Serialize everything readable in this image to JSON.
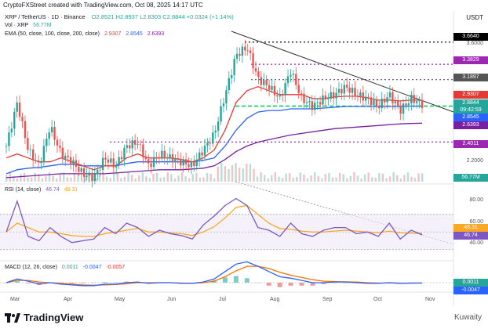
{
  "header": {
    "text": "CryptoFXStreet created with TradingView.com, Oct 08, 2025 14:17 UTC"
  },
  "legend": {
    "pair": "XRP / TetherUS · 1D · Binance",
    "ohlc": "O2.8521  H2.8937  L2.8303  C2.8844  +0.0324 (+1.14%)",
    "vol_label": "Vol · XRP",
    "vol_value": "56.77M",
    "ema_label": "EMA (50, close, 100, close, 200, close)",
    "ema50": "2.9307",
    "ema100": "2.8545",
    "ema200": "2.6393",
    "rsi_label": "RSI (14, close)",
    "rsi_value": "46.74",
    "rsi_ma": "48.31",
    "macd_label": "MACD (12, 26, close)",
    "macd_hist": "0.0011",
    "macd_line": "-0.0047",
    "macd_signal": "-0.0057"
  },
  "axis": {
    "currency": "USDT",
    "price_ticks": [
      "3.6000",
      "2.2000"
    ],
    "rsi_ticks": [
      "80.00",
      "60.00",
      "40.00"
    ],
    "months": [
      "Mar",
      "Apr",
      "May",
      "Jun",
      "Jul",
      "Aug",
      "Sep",
      "Oct",
      "Nov"
    ]
  },
  "price_tags": [
    {
      "value": "3.6640",
      "color": "#000000"
    },
    {
      "value": "3.3829",
      "color": "#9c27b0"
    },
    {
      "value": "3.1897",
      "color": "#555555"
    },
    {
      "value": "2.9307",
      "color": "#e53935"
    },
    {
      "value": "2.8844",
      "color": "#26a69a"
    },
    {
      "value": "09:42:59",
      "color": "#26a69a"
    },
    {
      "value": "2.8545",
      "color": "#2962ff"
    },
    {
      "value": "2.6393",
      "color": "#7b1fa2"
    },
    {
      "value": "2.4011",
      "color": "#9c27b0"
    },
    {
      "value": "56.77M",
      "color": "#26a69a"
    }
  ],
  "rsi_tags": [
    {
      "value": "48.31",
      "color": "#f9a825"
    },
    {
      "value": "46.74",
      "color": "#7e57c2"
    }
  ],
  "macd_tags": [
    {
      "value": "0.0011",
      "color": "#26a69a"
    },
    {
      "value": "-0.0047",
      "color": "#2962ff"
    }
  ],
  "chart_data": {
    "type": "candlestick",
    "ylim": [
      1.9,
      3.8
    ],
    "x": [
      "Mar",
      "Apr",
      "May",
      "Jun",
      "Jul",
      "Aug",
      "Sep",
      "Oct"
    ],
    "close_path": [
      2.35,
      2.9,
      2.3,
      2.1,
      2.6,
      2.25,
      2.15,
      2.0,
      1.95,
      2.2,
      2.1,
      2.35,
      2.4,
      2.1,
      2.25,
      2.2,
      2.15,
      2.1,
      2.3,
      2.5,
      3.0,
      3.5,
      3.6,
      3.2,
      3.1,
      2.95,
      3.3,
      2.95,
      2.85,
      2.95,
      3.0,
      3.1,
      3.0,
      2.95,
      2.85,
      3.0,
      2.8,
      2.95,
      2.88
    ],
    "ema50": [
      2.2,
      2.25,
      2.2,
      2.15,
      2.15,
      2.2,
      2.15,
      2.1,
      2.05,
      2.1,
      2.1,
      2.2,
      2.25,
      2.2,
      2.2,
      2.2,
      2.18,
      2.15,
      2.2,
      2.3,
      2.55,
      2.9,
      3.05,
      3.1,
      3.05,
      3.0,
      3.0,
      3.0,
      2.95,
      2.95,
      2.97,
      2.98,
      2.98,
      2.96,
      2.93,
      2.93,
      2.92,
      2.93,
      2.93
    ],
    "ema100": [
      2.0,
      2.05,
      2.07,
      2.08,
      2.1,
      2.12,
      2.12,
      2.1,
      2.1,
      2.1,
      2.1,
      2.13,
      2.15,
      2.15,
      2.15,
      2.15,
      2.15,
      2.15,
      2.17,
      2.2,
      2.35,
      2.55,
      2.7,
      2.78,
      2.8,
      2.8,
      2.82,
      2.82,
      2.82,
      2.83,
      2.84,
      2.85,
      2.85,
      2.85,
      2.85,
      2.85,
      2.85,
      2.855,
      2.8545
    ],
    "ema200": [
      1.95,
      1.96,
      1.97,
      1.98,
      1.99,
      2.0,
      2.0,
      2.0,
      2.0,
      2.0,
      2.01,
      2.02,
      2.03,
      2.04,
      2.05,
      2.05,
      2.05,
      2.06,
      2.07,
      2.1,
      2.18,
      2.28,
      2.35,
      2.4,
      2.43,
      2.46,
      2.49,
      2.51,
      2.53,
      2.55,
      2.57,
      2.58,
      2.59,
      2.6,
      2.61,
      2.62,
      2.63,
      2.635,
      2.6393
    ],
    "levels": [
      {
        "value": 3.664,
        "style": "dotted",
        "color": "#000000"
      },
      {
        "value": 3.3829,
        "style": "dotted",
        "color": "#9c27b0"
      },
      {
        "value": 3.1897,
        "style": "dotted",
        "color": "#555555"
      },
      {
        "value": 2.8545,
        "style": "dashed",
        "color": "#00c853"
      },
      {
        "value": 2.4011,
        "style": "dotted",
        "color": "#9c27b0"
      }
    ],
    "rsi": [
      50,
      85,
      45,
      40,
      55,
      45,
      38,
      40,
      42,
      55,
      48,
      60,
      55,
      45,
      52,
      48,
      46,
      42,
      58,
      68,
      80,
      88,
      80,
      55,
      52,
      45,
      60,
      48,
      45,
      52,
      55,
      55,
      48,
      50,
      45,
      60,
      42,
      52,
      46.74
    ],
    "rsi_ma": [
      50,
      60,
      55,
      50,
      50,
      48,
      46,
      45,
      45,
      48,
      50,
      52,
      54,
      50,
      50,
      49,
      48,
      46,
      50,
      56,
      66,
      78,
      80,
      70,
      60,
      54,
      53,
      51,
      50,
      50,
      51,
      52,
      51,
      50,
      49,
      51,
      49,
      48.5,
      48.31
    ],
    "macd": [
      0,
      0.05,
      0.02,
      -0.02,
      0.0,
      -0.02,
      -0.03,
      -0.04,
      -0.04,
      -0.02,
      -0.02,
      0.0,
      0.01,
      -0.01,
      0.0,
      0.0,
      -0.01,
      -0.01,
      0.01,
      0.05,
      0.15,
      0.25,
      0.28,
      0.22,
      0.15,
      0.08,
      0.06,
      0.03,
      0.0,
      0.0,
      0.01,
      0.01,
      0.0,
      -0.01,
      -0.01,
      0.0,
      -0.01,
      -0.005,
      -0.0047
    ],
    "macd_signal": [
      0,
      0.03,
      0.03,
      0.01,
      0.0,
      -0.01,
      -0.02,
      -0.03,
      -0.035,
      -0.03,
      -0.025,
      -0.015,
      0.0,
      0.0,
      0.0,
      0.0,
      -0.005,
      -0.01,
      0.0,
      0.02,
      0.08,
      0.16,
      0.22,
      0.22,
      0.19,
      0.14,
      0.1,
      0.07,
      0.04,
      0.02,
      0.015,
      0.012,
      0.008,
      0.0,
      -0.005,
      -0.004,
      -0.006,
      -0.006,
      -0.0057
    ]
  }
}
